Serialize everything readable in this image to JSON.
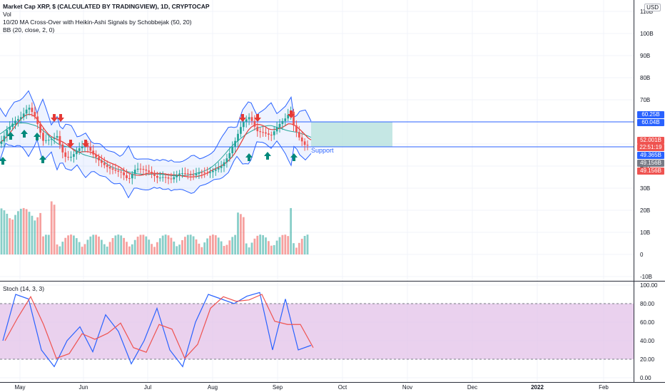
{
  "header": {
    "title": "Market Cap XRP, $ (CALCULATED BY TRADINGVIEW), 1D, CRYPTOCAP",
    "indicator_vol": "Vol",
    "indicator_ma": "10/20 MA Cross-Over with Heikin-Ashi Signals by Schobbejak (50, 20)",
    "indicator_bb": "BB (20, close, 2, 0)",
    "currency": "USD"
  },
  "stoch_legend": "Stoch (14, 3, 3)",
  "support_label": "Support",
  "price_tags": [
    {
      "text": "60.25B",
      "color": "#2962ff"
    },
    {
      "text": "60.04B",
      "color": "#2962ff"
    },
    {
      "text": "52.001B",
      "color": "#ef5350"
    },
    {
      "text": "22:51:19",
      "color": "#ef5350"
    },
    {
      "text": "49.365B",
      "color": "#2962ff"
    },
    {
      "text": "49.156B",
      "color": "#787b86"
    },
    {
      "text": "49.156B",
      "color": "#ef5350"
    }
  ],
  "colors": {
    "up": "#26a69a",
    "down": "#ef5350",
    "bb": "#2962ff",
    "ma_fast": "#e53935",
    "ma_slow": "#26a69a",
    "stoch_k": "#2962ff",
    "stoch_d": "#ef5350",
    "stoch_band": "#e1bee7",
    "zone": "#b2dfdb"
  },
  "chart_data": [
    {
      "type": "candlestick",
      "title": "Market Cap XRP, $ (CALCULATED BY TRADINGVIEW), 1D, CRYPTOCAP",
      "y_axis_ticks": [
        "110B",
        "100B",
        "90B",
        "80B",
        "70B",
        "60B",
        "50B",
        "40B",
        "30B",
        "20B",
        "10B",
        "0",
        "-10B"
      ],
      "x_axis_ticks": [
        "May",
        "Jun",
        "Jul",
        "Aug",
        "Sep",
        "Oct",
        "Nov",
        "Dec",
        "2022",
        "Feb"
      ],
      "ylim": [
        -10,
        110
      ],
      "horizontal_levels": [
        60.04,
        49.365
      ],
      "close_approx": {
        "x": [
          "May",
          "Jun",
          "Jul",
          "Aug",
          "Sep"
        ],
        "values": [
          55,
          45,
          36,
          33,
          52
        ]
      },
      "last_close": 52.001
    },
    {
      "type": "line",
      "title": "Stoch (14, 3, 3)",
      "y_axis_ticks": [
        "100.00",
        "80.00",
        "60.00",
        "40.00",
        "20.00",
        "0.00"
      ],
      "ylim": [
        0,
        100
      ],
      "band": [
        20,
        80
      ],
      "series": [
        {
          "values": [
            40,
            90,
            85,
            30,
            12,
            40,
            55,
            28,
            68,
            50,
            15,
            40,
            75,
            30,
            12,
            60,
            90,
            85,
            80,
            88,
            92,
            30,
            85,
            30,
            35
          ]
        }
      ]
    }
  ]
}
